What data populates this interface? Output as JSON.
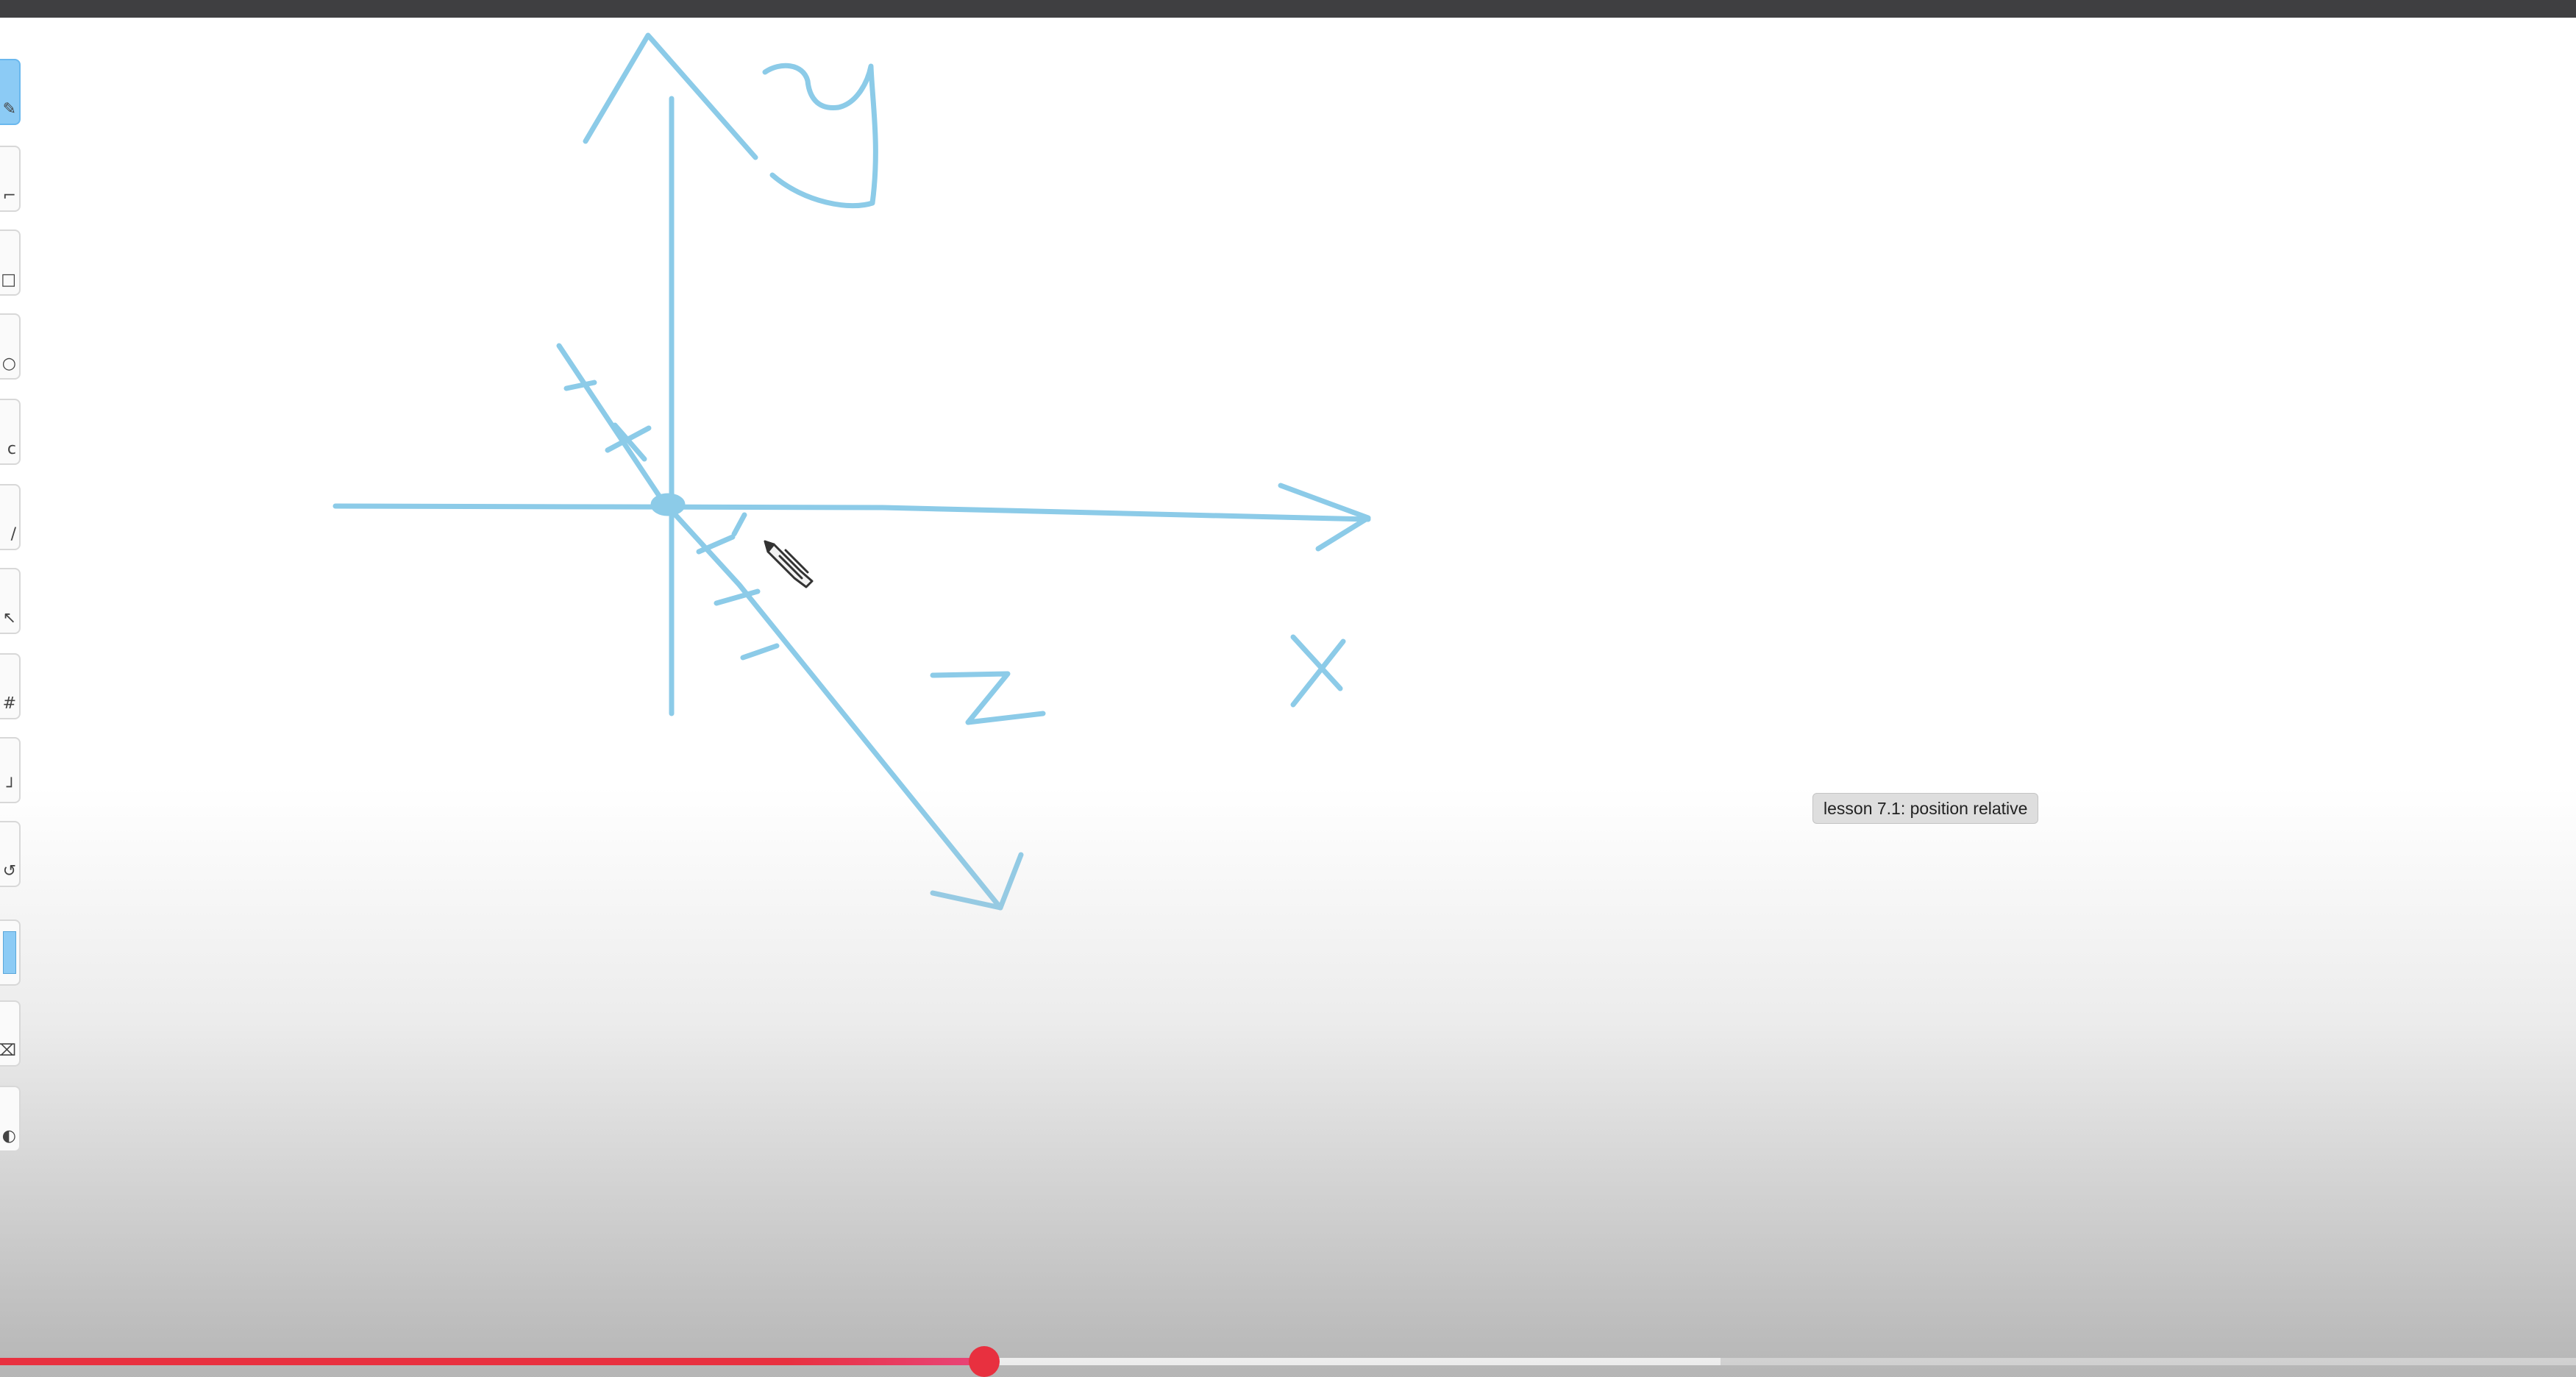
{
  "window": {
    "top_bar_color": "#3f3f41"
  },
  "toolbar": {
    "tools": [
      {
        "name": "pen-tool",
        "glyph": "✎",
        "active": true
      },
      {
        "name": "line-tool",
        "glyph": "⌐"
      },
      {
        "name": "rectangle-tool",
        "glyph": "□"
      },
      {
        "name": "ellipse-tool",
        "glyph": "○"
      },
      {
        "name": "text-tool",
        "glyph": "c"
      },
      {
        "name": "highlighter-tool",
        "glyph": "/"
      },
      {
        "name": "select-tool",
        "glyph": "↖"
      },
      {
        "name": "grid-tool",
        "glyph": "#"
      },
      {
        "name": "crop-tool",
        "glyph": "┘"
      },
      {
        "name": "undo-tool",
        "glyph": "↺"
      },
      {
        "name": "color-swatch",
        "glyph": "",
        "swatch": true
      },
      {
        "name": "eraser-tool",
        "glyph": "⌫"
      },
      {
        "name": "fill-tool",
        "glyph": "◐"
      }
    ]
  },
  "drawing": {
    "stroke_color": "#8ccbe8",
    "axis_labels": {
      "y": "y",
      "x": "X",
      "z": "Z"
    }
  },
  "tooltip": {
    "text": "lesson 7.1: position relative"
  },
  "player": {
    "progress_percent": 38.2,
    "buffered_percent": 66.8,
    "played_color": "#e8303f"
  }
}
